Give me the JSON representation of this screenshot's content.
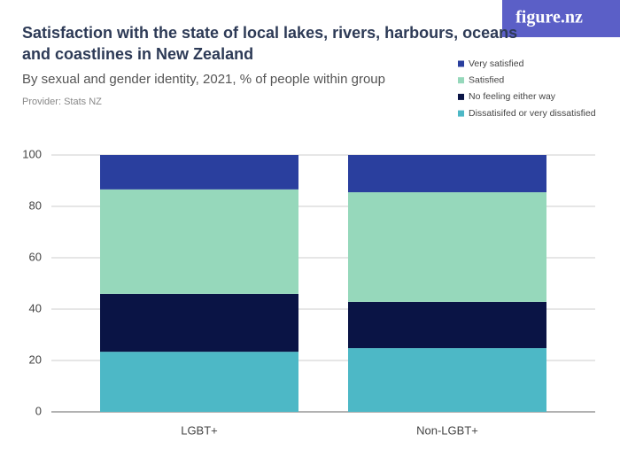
{
  "chart_data": {
    "type": "stacked-bar",
    "title": [
      "Satisfaction with the state of local lakes, rivers, harbours, oceans",
      "and coastlines in New Zealand"
    ],
    "subtitle": "By sexual and gender identity, 2021, % of people within group",
    "provider": "Provider: Stats NZ",
    "logo": "figure.nz",
    "categories": [
      "LGBT+",
      "Non-LGBT+"
    ],
    "series": [
      {
        "name": "Dissatisifed or very dissatisfied",
        "color": "#4db8c6",
        "values": [
          23.4,
          24.8
        ]
      },
      {
        "name": "No feeling either way",
        "color": "#0a1445",
        "values": [
          22.5,
          18.0
        ]
      },
      {
        "name": "Satisfied",
        "color": "#96d8bb",
        "values": [
          40.7,
          42.7
        ]
      },
      {
        "name": "Very satisfied",
        "color": "#2a3f9e",
        "values": [
          13.4,
          14.5
        ]
      }
    ],
    "ylim": [
      0,
      100
    ],
    "yticks": [
      0,
      20,
      40,
      60,
      80,
      100
    ],
    "grid": true
  }
}
